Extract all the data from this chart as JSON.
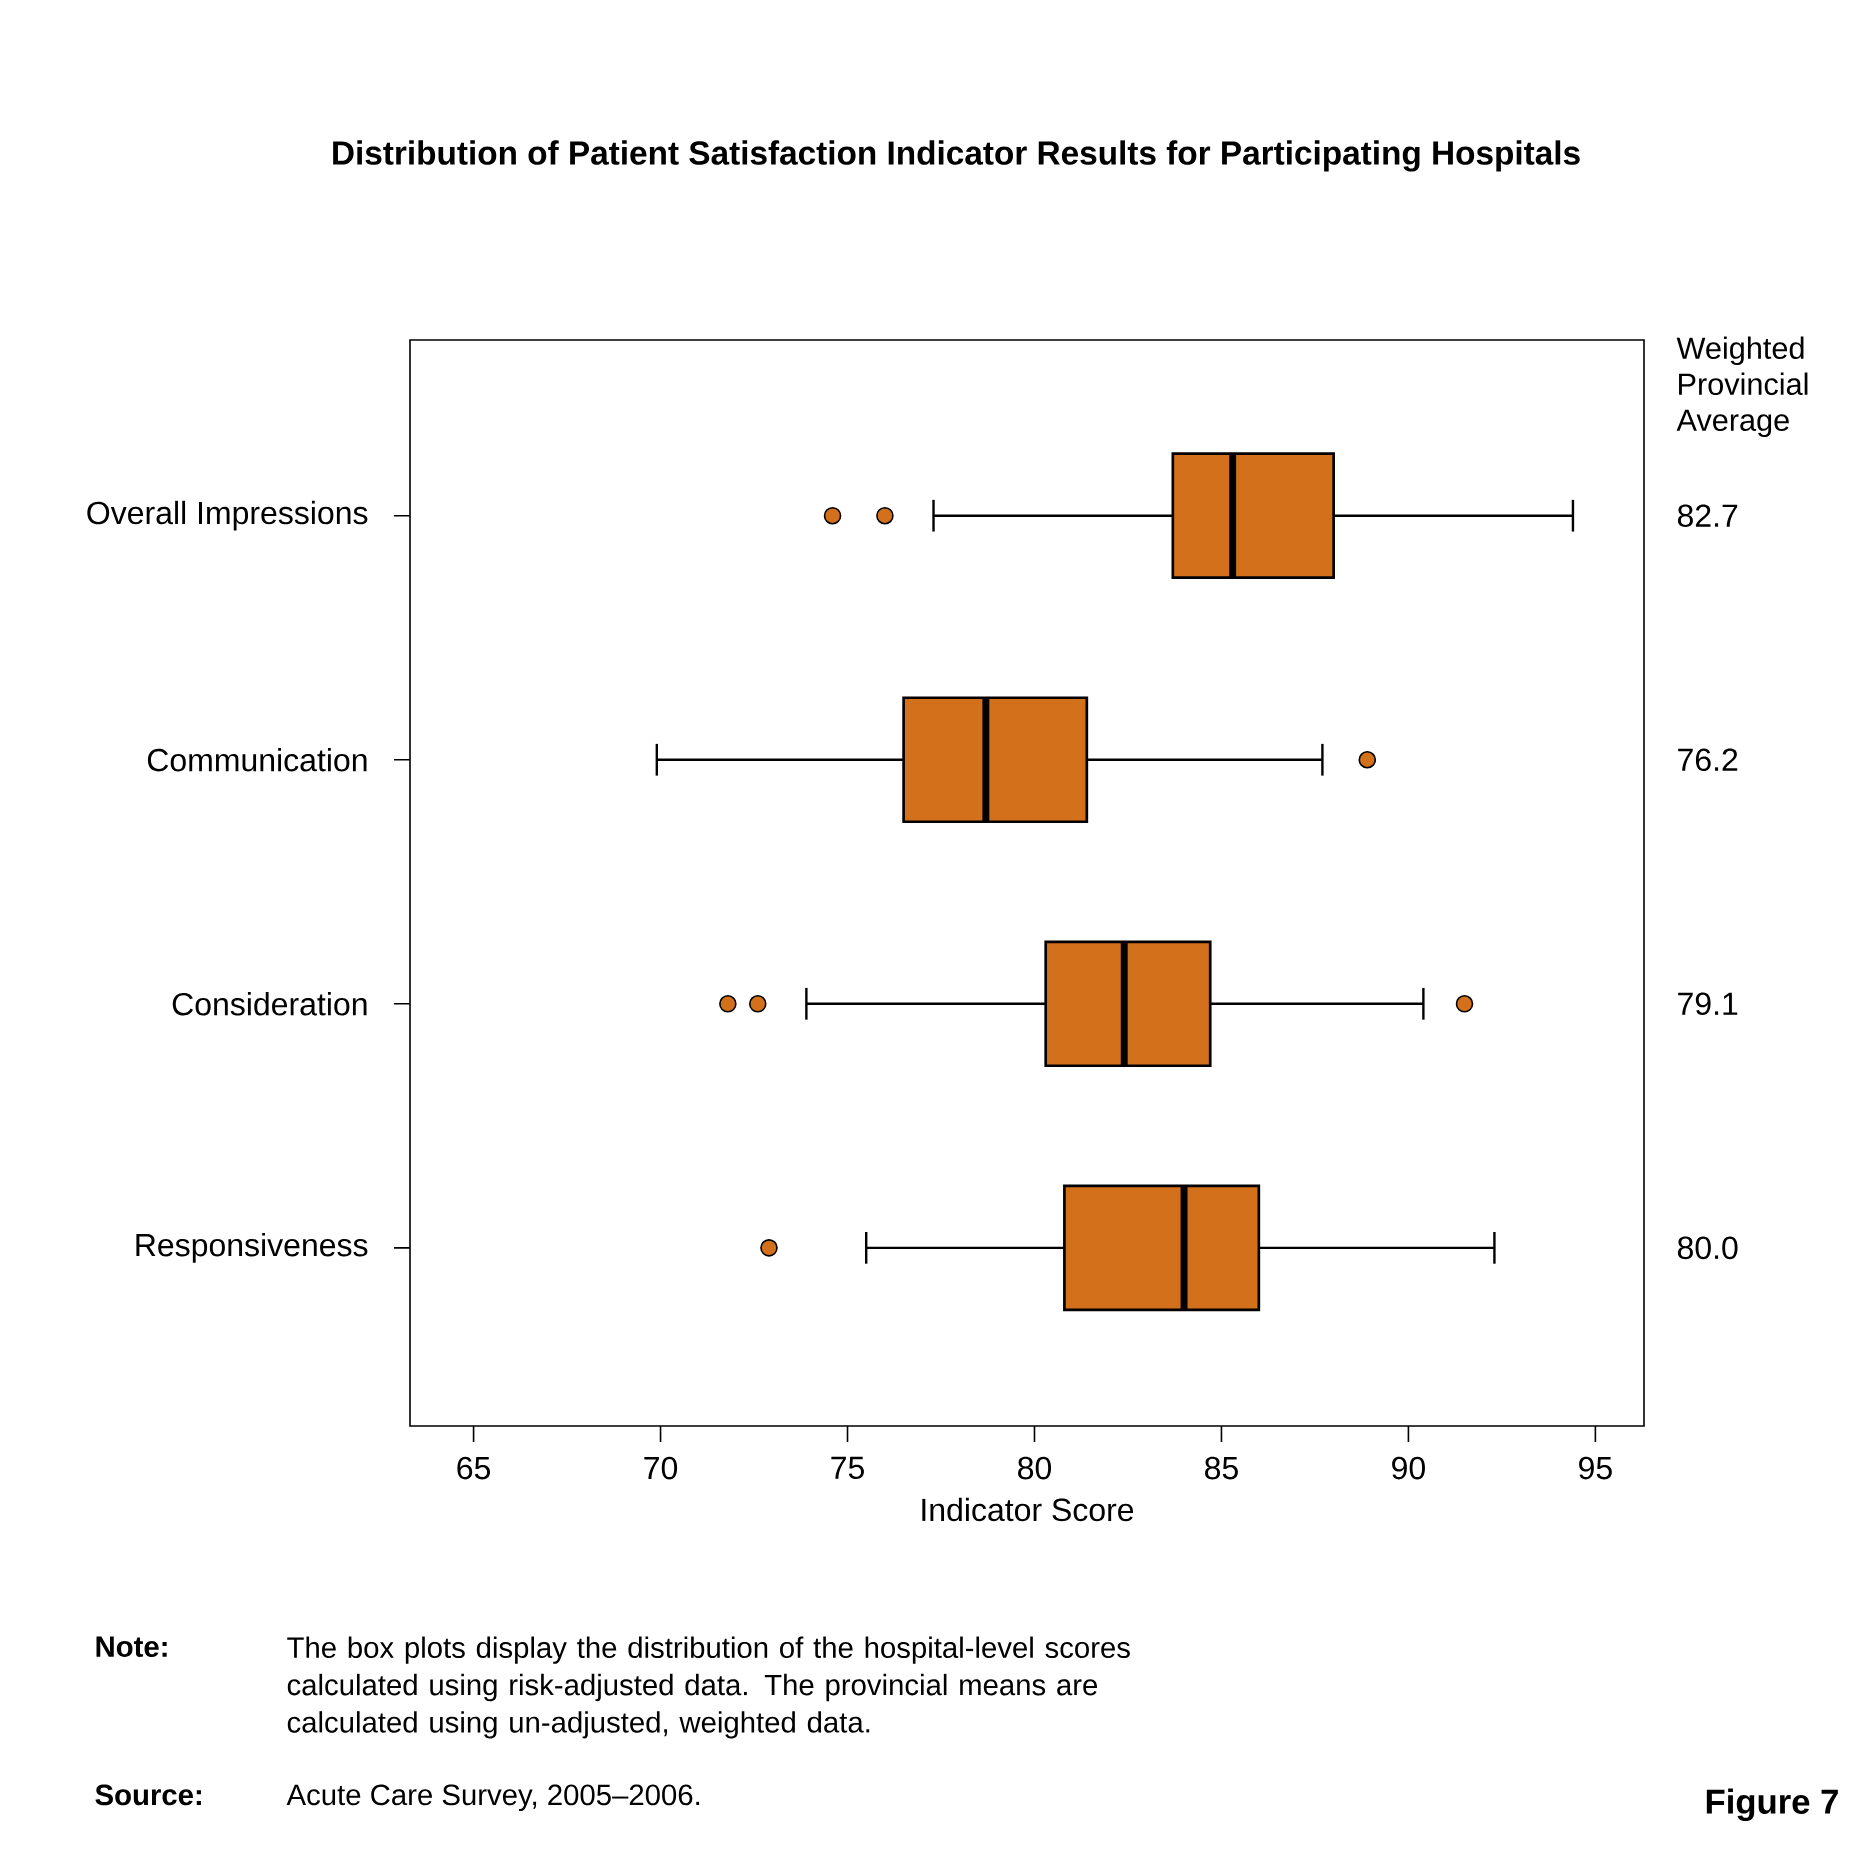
{
  "chart_data": {
    "type": "box",
    "orientation": "horizontal",
    "title": "Distribution of Patient Satisfaction Indicator Results for Participating Hospitals",
    "xlabel": "Indicator Score",
    "color": "#d2701c",
    "categories": [
      "Overall Impressions",
      "Communication",
      "Consideration",
      "Responsiveness"
    ],
    "boxes": [
      {
        "low": 77.3,
        "q1": 83.7,
        "median": 85.3,
        "q3": 88.0,
        "high": 94.4,
        "outliers": [
          74.6,
          76.0
        ]
      },
      {
        "low": 69.9,
        "q1": 76.5,
        "median": 78.7,
        "q3": 81.4,
        "high": 87.7,
        "outliers": [
          88.9
        ]
      },
      {
        "low": 73.9,
        "q1": 80.3,
        "median": 82.4,
        "q3": 84.7,
        "high": 90.4,
        "outliers": [
          71.8,
          72.6,
          91.5
        ]
      },
      {
        "low": 75.5,
        "q1": 80.8,
        "median": 84.0,
        "q3": 86.0,
        "high": 92.3,
        "outliers": [
          72.9
        ]
      }
    ],
    "xlim": [
      63.3,
      96.3
    ],
    "xticks": [
      65,
      70,
      75,
      80,
      85,
      90,
      95
    ],
    "annotations": [
      "Weighted Provincial Average",
      "82.7",
      "76.2",
      "79.1",
      "80.0",
      "Note:",
      "The box plots display the distribution of the hospital-level scores calculated using risk-adjusted data. The provincial means are calculated using un-adjusted, weighted data.",
      "Source:",
      "Acute Care Survey, 2005–2006.",
      "Figure 7"
    ]
  }
}
